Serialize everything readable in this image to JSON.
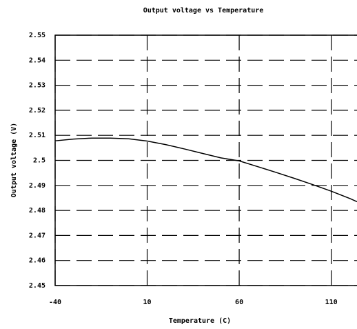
{
  "chart_data": {
    "type": "line",
    "title": "Output voltage vs Temperature",
    "x_label": "Temperature (C)",
    "y_label": "Output voltage (V)",
    "x": [
      -40,
      -30,
      -20,
      -10,
      0,
      10,
      20,
      30,
      40,
      50,
      60,
      70,
      80,
      90,
      100,
      110,
      120,
      124
    ],
    "series": [
      {
        "color": "#000000",
        "values": [
          2.5078,
          2.5085,
          2.5089,
          2.5089,
          2.5086,
          2.5077,
          2.5063,
          2.5046,
          2.5028,
          2.501,
          2.4998,
          2.4975,
          2.4952,
          2.4928,
          2.4903,
          2.4877,
          2.4848,
          2.4835
        ]
      }
    ],
    "xlim": [
      -40,
      124
    ],
    "xticks": [
      -40,
      10,
      60,
      110
    ],
    "ylim": [
      2.45,
      2.55
    ],
    "yticks": [
      2.45,
      2.46,
      2.47,
      2.48,
      2.49,
      2.5,
      2.51,
      2.52,
      2.53,
      2.54,
      2.55
    ],
    "grid": true
  }
}
